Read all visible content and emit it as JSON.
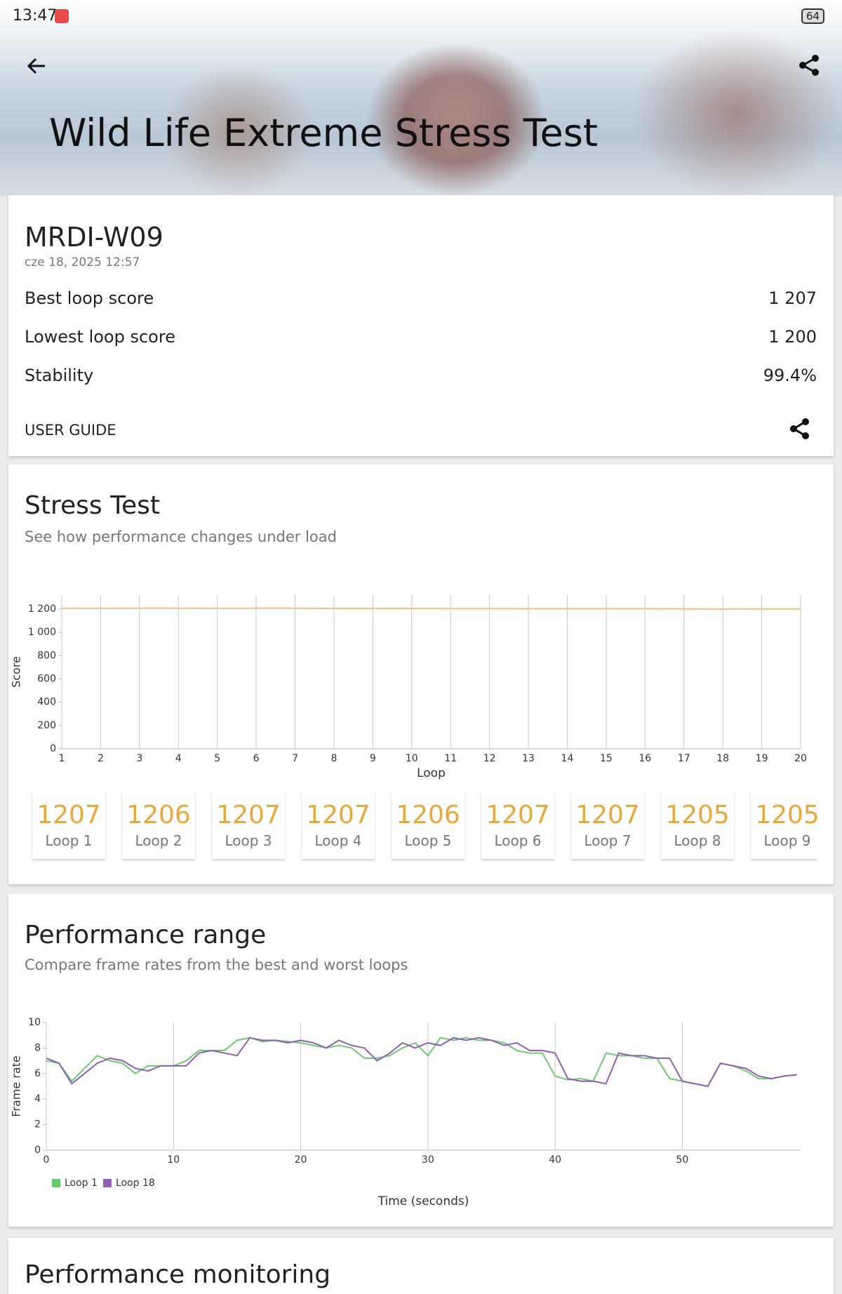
{
  "status_bar": {
    "time": "13:47",
    "battery": "64"
  },
  "header": {
    "title": "Wild Life Extreme Stress Test"
  },
  "summary": {
    "device": "MRDI-W09",
    "date": "cze 18, 2025 12:57",
    "rows": [
      {
        "label": "Best loop score",
        "value": "1 207"
      },
      {
        "label": "Lowest loop score",
        "value": "1 200"
      },
      {
        "label": "Stability",
        "value": "99.4%"
      }
    ],
    "user_guide": "USER GUIDE"
  },
  "stress_section": {
    "title": "Stress Test",
    "subtitle": "See how performance changes under load",
    "loop_labels": [
      "Loop 1",
      "Loop 2",
      "Loop 3",
      "Loop 4",
      "Loop 5",
      "Loop 6",
      "Loop 7",
      "Loop 8",
      "Loop 9"
    ]
  },
  "range_section": {
    "title": "Performance range",
    "subtitle": "Compare frame rates from the best and worst loops"
  },
  "monitoring_section": {
    "title": "Performance monitoring"
  },
  "chart_data": [
    {
      "type": "line",
      "ylabel": "Score",
      "xlabel": "Loop",
      "color": "#f0c08a",
      "x": [
        1,
        2,
        3,
        4,
        5,
        6,
        7,
        8,
        9,
        10,
        11,
        12,
        13,
        14,
        15,
        16,
        17,
        18,
        19,
        20
      ],
      "values": [
        1207,
        1206,
        1207,
        1207,
        1206,
        1207,
        1207,
        1205,
        1205,
        1205,
        1204,
        1204,
        1203,
        1203,
        1203,
        1203,
        1202,
        1200,
        1201,
        1201
      ],
      "xlim": [
        1,
        20
      ],
      "xticks": [
        1,
        2,
        3,
        4,
        5,
        6,
        7,
        8,
        9,
        10,
        11,
        12,
        13,
        14,
        15,
        16,
        17,
        18,
        19,
        20
      ],
      "ylim": [
        0,
        1320
      ],
      "yticks": [
        0,
        200,
        400,
        600,
        800,
        {
          "value": 1000,
          "label": "1 000"
        },
        {
          "value": 1200,
          "label": "1 200"
        }
      ],
      "grid": "x"
    },
    {
      "type": "line",
      "ylabel": "Frame rate",
      "xlabel": "Time (seconds)",
      "x": [
        0,
        1,
        2,
        3,
        4,
        5,
        6,
        7,
        8,
        9,
        10,
        11,
        12,
        13,
        14,
        15,
        16,
        17,
        18,
        19,
        20,
        21,
        22,
        23,
        24,
        25,
        26,
        27,
        28,
        29,
        30,
        31,
        32,
        33,
        34,
        35,
        36,
        37,
        38,
        39,
        40,
        41,
        42,
        43,
        44,
        45,
        46,
        47,
        48,
        49,
        50,
        51,
        52,
        53,
        54,
        55,
        56,
        57,
        58,
        59
      ],
      "series": [
        {
          "name": "Loop 1",
          "color": "#6cc970",
          "values": [
            7.0,
            6.8,
            5.4,
            6.4,
            7.4,
            7.0,
            6.8,
            6.0,
            6.6,
            6.6,
            6.6,
            7.0,
            7.8,
            7.8,
            7.8,
            8.6,
            8.8,
            8.5,
            8.6,
            8.5,
            8.4,
            8.2,
            8.0,
            8.2,
            8.0,
            7.2,
            7.2,
            7.4,
            8.0,
            8.4,
            7.4,
            8.8,
            8.6,
            8.8,
            8.6,
            8.6,
            8.4,
            7.8,
            7.6,
            7.6,
            5.8,
            5.5,
            5.6,
            5.4,
            7.6,
            7.4,
            7.4,
            7.2,
            7.2,
            5.6,
            5.4,
            5.2,
            5.0,
            6.8,
            6.6,
            6.2,
            5.6,
            5.6,
            5.8,
            5.9
          ]
        },
        {
          "name": "Loop 18",
          "color": "#8e5fb5",
          "values": [
            7.2,
            6.8,
            5.2,
            6.0,
            6.8,
            7.2,
            7.0,
            6.4,
            6.2,
            6.6,
            6.6,
            6.6,
            7.6,
            7.8,
            7.6,
            7.4,
            8.8,
            8.6,
            8.6,
            8.4,
            8.6,
            8.4,
            8.0,
            8.6,
            8.2,
            8.0,
            7.0,
            7.6,
            8.4,
            8.0,
            8.4,
            8.2,
            8.8,
            8.6,
            8.8,
            8.6,
            8.2,
            8.4,
            7.8,
            7.8,
            7.6,
            5.6,
            5.4,
            5.4,
            5.2,
            7.6,
            7.4,
            7.4,
            7.2,
            7.2,
            5.4,
            5.2,
            5.0,
            6.8,
            6.6,
            6.4,
            5.8,
            5.6,
            5.8,
            5.9
          ]
        }
      ],
      "xlim": [
        0,
        59.3
      ],
      "xticks": [
        0,
        10,
        20,
        30,
        40,
        50
      ],
      "ylim": [
        0,
        10
      ],
      "yticks": [
        0,
        2,
        4,
        6,
        8,
        10
      ],
      "grid": "x",
      "legend": "bottom-left"
    }
  ]
}
